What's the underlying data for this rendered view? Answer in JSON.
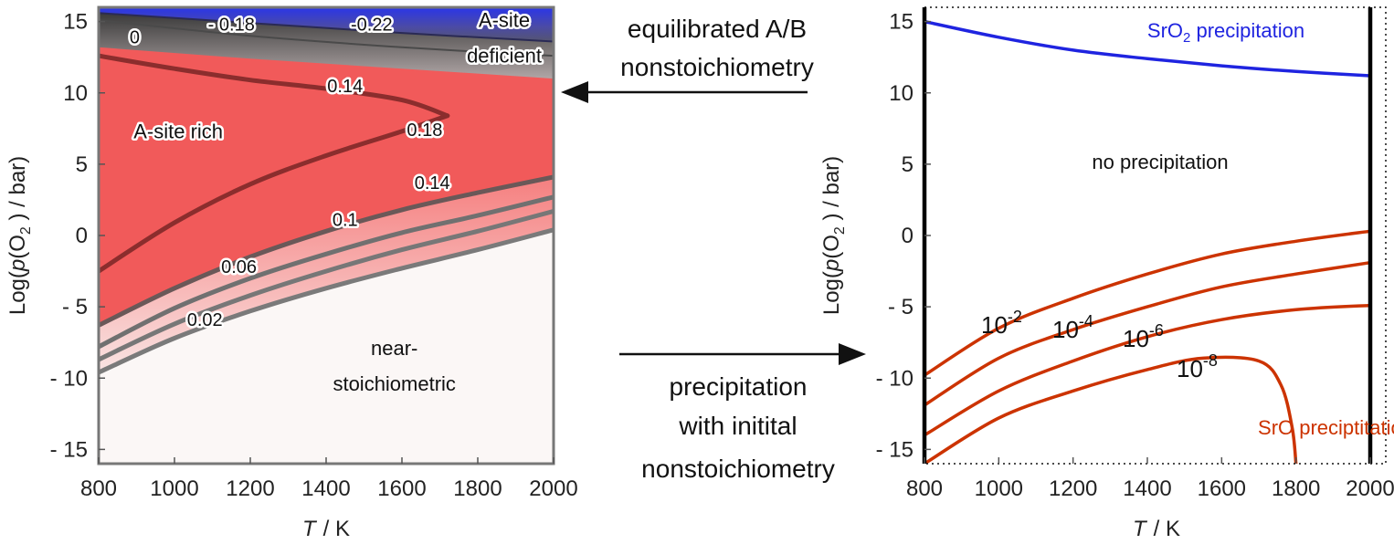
{
  "chart_data": [
    {
      "type": "heatmap",
      "xlabel_italic": "T",
      "xlabel_unit": "/ K",
      "ylabel_prefix": "Log(",
      "ylabel_italic": "p",
      "ylabel_mid": "(O",
      "ylabel_sub": "2",
      "ylabel_suffix": " ) / bar)",
      "xlim": [
        800,
        2000
      ],
      "ylim": [
        -16,
        16
      ],
      "x_ticks": [
        800,
        1000,
        1200,
        1400,
        1600,
        1800,
        2000
      ],
      "y_ticks": [
        15,
        10,
        5,
        0,
        -5,
        -10,
        -15
      ],
      "y_tick_labels": [
        "15",
        "10",
        "5",
        "0",
        "- 5",
        "- 10",
        "- 15"
      ],
      "contours": [
        {
          "level": "0.02",
          "color": "#7a7a7a",
          "x": [
            800,
            1000,
            1200,
            1400,
            1600,
            1800,
            2000
          ],
          "y": [
            -9.6,
            -7.2,
            -5.3,
            -3.7,
            -2.3,
            -1.0,
            0.4
          ]
        },
        {
          "level": "0.06",
          "color": "#777777",
          "x": [
            800,
            1000,
            1200,
            1400,
            1600,
            1800,
            2000
          ],
          "y": [
            -8.7,
            -6.2,
            -4.2,
            -2.5,
            -1.0,
            0.3,
            1.7
          ]
        },
        {
          "level": "0.1",
          "color": "#707070",
          "x": [
            800,
            1000,
            1200,
            1400,
            1600,
            1800,
            2000
          ],
          "y": [
            -7.8,
            -5.1,
            -3.0,
            -1.3,
            0.2,
            1.4,
            2.7
          ]
        },
        {
          "level": "0.14",
          "color": "#6a5858",
          "x": [
            800,
            1000,
            1200,
            1400,
            1600,
            1800,
            2000
          ],
          "y": [
            -6.3,
            -3.7,
            -1.5,
            0.3,
            1.8,
            3.0,
            4.1
          ]
        },
        {
          "level": "0.18",
          "color": "#8b2d2d",
          "x": [
            800,
            1000,
            1200,
            1400,
            1600,
            1720
          ],
          "y": [
            -2.5,
            0.9,
            3.6,
            5.6,
            7.3,
            8.4
          ]
        },
        {
          "level": "0.14",
          "color": "#8b2d2d",
          "x": [
            800,
            1000,
            1200,
            1400,
            1600,
            1720
          ],
          "y": [
            12.6,
            11.7,
            10.9,
            10.3,
            9.5,
            8.4
          ]
        },
        {
          "level": "0",
          "color": "#4a4a4a",
          "x": [
            800,
            1200,
            1600,
            2000
          ],
          "y": [
            15.1,
            14.0,
            13.2,
            12.6
          ]
        },
        {
          "level": "-0.18",
          "color": "#2a2a55",
          "x": [
            800,
            1200,
            1600,
            2000
          ],
          "y": [
            15.6,
            14.9,
            14.2,
            13.6
          ]
        }
      ],
      "contour_labels": [
        {
          "text": "0.02",
          "x": 1080,
          "y": -6.0
        },
        {
          "text": "0.06",
          "x": 1170,
          "y": -2.3
        },
        {
          "text": "0.1",
          "x": 1450,
          "y": 1.0
        },
        {
          "text": "0.14",
          "x": 1680,
          "y": 3.6
        },
        {
          "text": "0.18",
          "x": 1660,
          "y": 7.3
        },
        {
          "text": "0.14",
          "x": 1450,
          "y": 10.4
        },
        {
          "text": "0",
          "x": 895,
          "y": 13.8
        },
        {
          "text": "- 0.18",
          "x": 1150,
          "y": 14.7
        },
        {
          "text": "-0.22",
          "x": 1520,
          "y": 14.7
        }
      ],
      "regions": [
        {
          "name": "a-site-rich",
          "text": "A-site rich",
          "x": 1010,
          "y": 7.2
        },
        {
          "name": "a-site-deficient-1",
          "text": "A-site",
          "x": 1870,
          "y": 15.0
        },
        {
          "name": "a-site-deficient-2",
          "text": "deficient",
          "x": 1870,
          "y": 12.5
        },
        {
          "name": "near-1",
          "text": "near-",
          "x": 1580,
          "y": -8.0
        },
        {
          "name": "near-2",
          "text": "stoichiometric",
          "x": 1580,
          "y": -10.5
        }
      ]
    },
    {
      "type": "line",
      "xlabel_italic": "T",
      "xlabel_unit": "/ K",
      "ylabel_prefix": "Log(",
      "ylabel_italic": "p",
      "ylabel_mid": "(O",
      "ylabel_sub": "2",
      "ylabel_suffix": " ) / bar)",
      "xlim": [
        800,
        2000
      ],
      "ylim": [
        -16,
        16
      ],
      "x_ticks": [
        800,
        1000,
        1200,
        1400,
        1600,
        1800,
        2000
      ],
      "y_ticks": [
        15,
        10,
        5,
        0,
        -5,
        -10,
        -15
      ],
      "y_tick_labels": [
        "15",
        "10",
        "5",
        "0",
        "- 5",
        "- 10",
        "- 15"
      ],
      "series": [
        {
          "key": "sro2",
          "color": "#1f24e0",
          "x": [
            800,
            1000,
            1200,
            1400,
            1600,
            1800,
            2000
          ],
          "y": [
            15.0,
            13.9,
            13.0,
            12.4,
            11.9,
            11.5,
            11.2
          ]
        },
        {
          "key": "1e-2",
          "color": "#cc3300",
          "x": [
            800,
            1000,
            1200,
            1400,
            1600,
            1800,
            2000
          ],
          "y": [
            -9.8,
            -6.5,
            -4.4,
            -2.7,
            -1.3,
            -0.4,
            0.3
          ]
        },
        {
          "key": "1e-4",
          "color": "#cc3300",
          "x": [
            800,
            1000,
            1200,
            1400,
            1600,
            1800,
            2000
          ],
          "y": [
            -11.9,
            -8.6,
            -6.6,
            -5.0,
            -3.6,
            -2.7,
            -1.9
          ]
        },
        {
          "key": "1e-6",
          "color": "#cc3300",
          "x": [
            800,
            1000,
            1200,
            1400,
            1600,
            1800,
            2000
          ],
          "y": [
            -14.0,
            -10.9,
            -8.8,
            -7.1,
            -5.9,
            -5.2,
            -4.9
          ]
        },
        {
          "key": "1e-8",
          "color": "#cc3300",
          "x": [
            800,
            1000,
            1200,
            1400,
            1550,
            1700,
            1760,
            1790,
            1800
          ],
          "y": [
            -16.0,
            -12.8,
            -10.9,
            -9.4,
            -8.6,
            -8.8,
            -10.5,
            -13.5,
            -16.0
          ]
        }
      ],
      "annotations": {
        "sro2_prefix": "SrO",
        "sro2_sub": "2",
        "sro2_suffix": " precipitation",
        "no_precip": "no precipitation",
        "sro_precip": "SrO preciptitation",
        "base": "10",
        "exp_2": "-2",
        "exp_4": "-4",
        "exp_6": "-6",
        "exp_8": "-8"
      }
    }
  ],
  "arrows": {
    "top_line1": "equilibrated A/B",
    "top_line2": "nonstoichiometry",
    "bottom_line1": "precipitation",
    "bottom_line2": "with initital",
    "bottom_line3": "nonstoichiometry"
  },
  "colors": {
    "red": "#f15a5a",
    "blue": "#2333e8",
    "near": "#fbf7f6",
    "frame_left": "#777777"
  }
}
